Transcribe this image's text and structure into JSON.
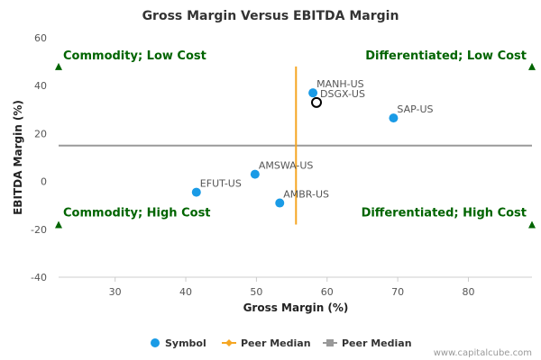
{
  "chart_data": {
    "type": "scatter",
    "title": "Gross Margin Versus EBITDA Margin",
    "xlabel": "Gross Margin (%)",
    "ylabel": "EBITDA Margin (%)",
    "xlim": [
      22,
      89
    ],
    "ylim": [
      -40,
      60
    ],
    "xticks": [
      30,
      40,
      50,
      60,
      70,
      80
    ],
    "yticks": [
      -40,
      -20,
      0,
      20,
      40,
      60
    ],
    "grid": false,
    "points": [
      {
        "label": "MANH-US",
        "x": 58.0,
        "y": 37.0,
        "style": "filled"
      },
      {
        "label": "DSGX-US",
        "x": 58.5,
        "y": 33.0,
        "style": "open"
      },
      {
        "label": "SAP-US",
        "x": 69.4,
        "y": 26.5,
        "style": "filled"
      },
      {
        "label": "AMSWA-US",
        "x": 49.8,
        "y": 3.0,
        "style": "filled"
      },
      {
        "label": "EFUT-US",
        "x": 41.5,
        "y": -4.5,
        "style": "filled"
      },
      {
        "label": "AMBR-US",
        "x": 53.3,
        "y": -9.0,
        "style": "filled"
      }
    ],
    "peer_median_x": 55.6,
    "peer_median_x_range": [
      -18,
      48
    ],
    "peer_median_y": 15.0,
    "quadrants": [
      {
        "label": "Commodity; Low Cost",
        "position": "top-left",
        "marker_y": 48
      },
      {
        "label": "Differentiated; Low Cost",
        "position": "top-right",
        "marker_y": 48
      },
      {
        "label": "Commodity; High Cost",
        "position": "bottom-left",
        "marker_y": -18
      },
      {
        "label": "Differentiated; High Cost",
        "position": "bottom-right",
        "marker_y": -18
      }
    ],
    "legend": {
      "placement": "bottom",
      "items": [
        {
          "label": "Symbol",
          "color": "#1a9be6",
          "shape": "circle"
        },
        {
          "label": "Peer Median",
          "color": "#f5a623",
          "shape": "diamond-line"
        },
        {
          "label": "Peer Median",
          "color": "#999999",
          "shape": "square-line"
        }
      ]
    },
    "colors": {
      "point": "#1a9be6",
      "vertical_median": "#f5a623",
      "horizontal_median": "#999999",
      "quadrant": "#006400",
      "open_point_stroke": "#000000"
    }
  },
  "footer": {
    "credit": "www.capitalcube.com"
  }
}
